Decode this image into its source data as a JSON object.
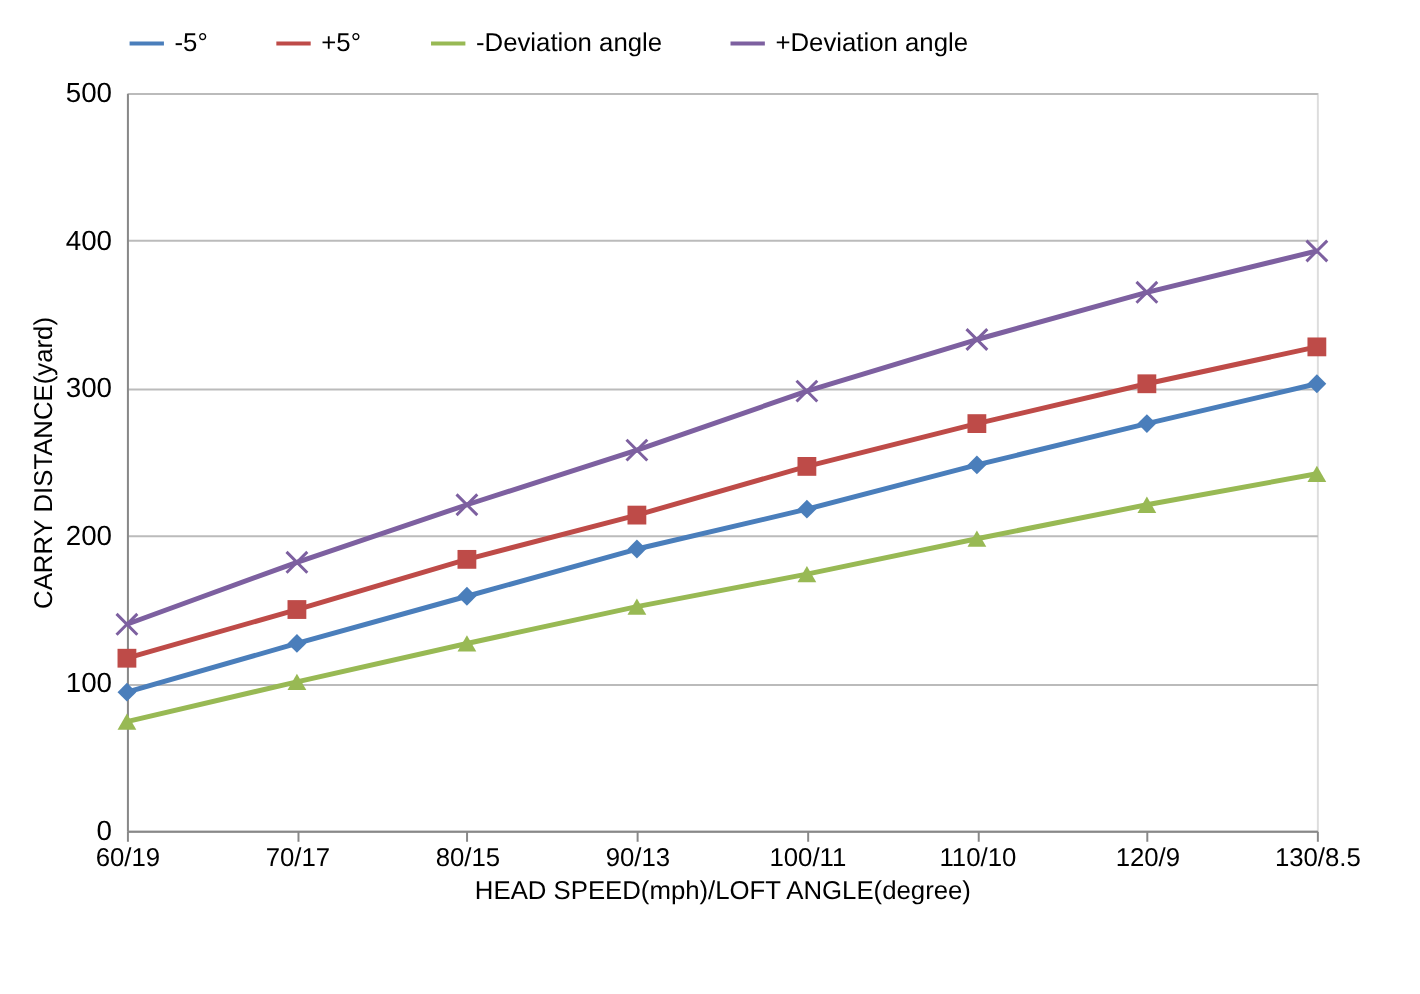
{
  "chart_data": {
    "type": "line",
    "xlabel": "HEAD SPEED(mph)/LOFT ANGLE(degree)",
    "ylabel": "CARRY DISTANCE(yard)",
    "categories": [
      "60/19",
      "70/17",
      "80/15",
      "90/13",
      "100/11",
      "110/10",
      "120/9",
      "130/8.5"
    ],
    "series": [
      {
        "name": "-5°",
        "color": "#4a7ebb",
        "marker": "diamond",
        "values": [
          94,
          127,
          159,
          191,
          218,
          248,
          276,
          303
        ]
      },
      {
        "name": "+5°",
        "color": "#be4b48",
        "marker": "square",
        "values": [
          117,
          150,
          184,
          214,
          247,
          276,
          303,
          328
        ]
      },
      {
        "name": "-Deviation angle",
        "color": "#98b954",
        "marker": "triangle",
        "values": [
          74,
          101,
          127,
          152,
          174,
          198,
          221,
          242
        ]
      },
      {
        "name": "+Deviation angle",
        "color": "#7d60a0",
        "marker": "cross",
        "values": [
          140,
          182,
          221,
          258,
          298,
          333,
          365,
          393
        ]
      }
    ],
    "ylim": [
      0,
      500
    ],
    "yticks": [
      0,
      100,
      200,
      300,
      400,
      500
    ],
    "grid": "y",
    "legend": "top"
  }
}
